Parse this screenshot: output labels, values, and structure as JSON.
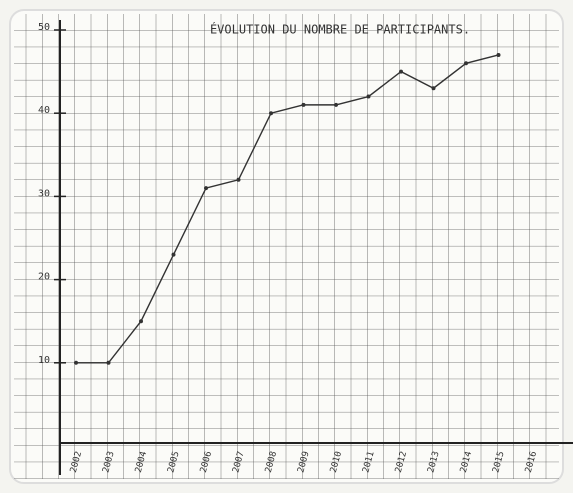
{
  "chart_data": {
    "type": "line",
    "title": "ÉVOLUTION DU NOMBRE DE PARTICIPANTS.",
    "categories": [
      "2002",
      "2003",
      "2004",
      "2005",
      "2006",
      "2007",
      "2008",
      "2009",
      "2010",
      "2011",
      "2012",
      "2013",
      "2014",
      "2015",
      "2016"
    ],
    "values": [
      10,
      10,
      15,
      23,
      31,
      32,
      40,
      41,
      41,
      42,
      45,
      43,
      46,
      47,
      null
    ],
    "color": "#333333",
    "ylim": [
      0,
      50
    ],
    "yticks": [
      10,
      20,
      30,
      40,
      50
    ]
  }
}
